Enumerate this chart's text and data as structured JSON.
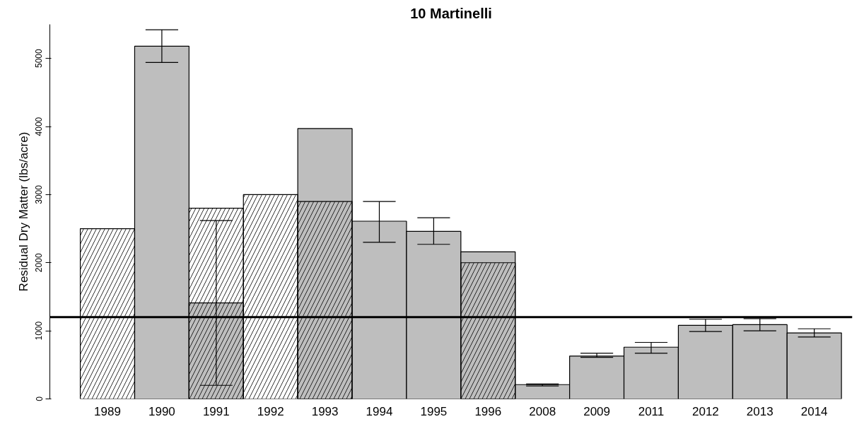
{
  "chart_data": {
    "type": "bar",
    "title": "10 Martinelli",
    "ylabel": "Residual Dry Matter (lbs/acre)",
    "categories": [
      "1989",
      "1990",
      "1991",
      "1992",
      "1993",
      "1994",
      "1995",
      "1996",
      "2008",
      "2009",
      "2011",
      "2012",
      "2013",
      "2014"
    ],
    "series": [
      {
        "color": "#bebebe",
        "values": [
          null,
          5180,
          1410,
          null,
          3970,
          2610,
          2460,
          2160,
          210,
          630,
          760,
          1080,
          1090,
          970
        ],
        "errors": [
          null,
          [
            4940,
            5420
          ],
          [
            200,
            2620
          ],
          null,
          null,
          [
            2300,
            2900
          ],
          [
            2270,
            2660
          ],
          null,
          [
            190,
            220
          ],
          [
            610,
            670
          ],
          [
            670,
            830
          ],
          [
            990,
            1170
          ],
          [
            1000,
            1180
          ],
          [
            910,
            1030
          ]
        ]
      },
      {
        "color": "#000000",
        "values": [
          2500,
          null,
          2800,
          3000,
          2900,
          null,
          null,
          2000,
          null,
          null,
          null,
          null,
          null,
          null
        ]
      }
    ],
    "ylim": [
      0,
      5500
    ],
    "yticks": [
      0,
      1000,
      2000,
      3000,
      4000,
      5000
    ],
    "ref_lines": [
      {
        "axis": "y",
        "value": 1200,
        "color": "#000000"
      }
    ],
    "grid": false
  }
}
